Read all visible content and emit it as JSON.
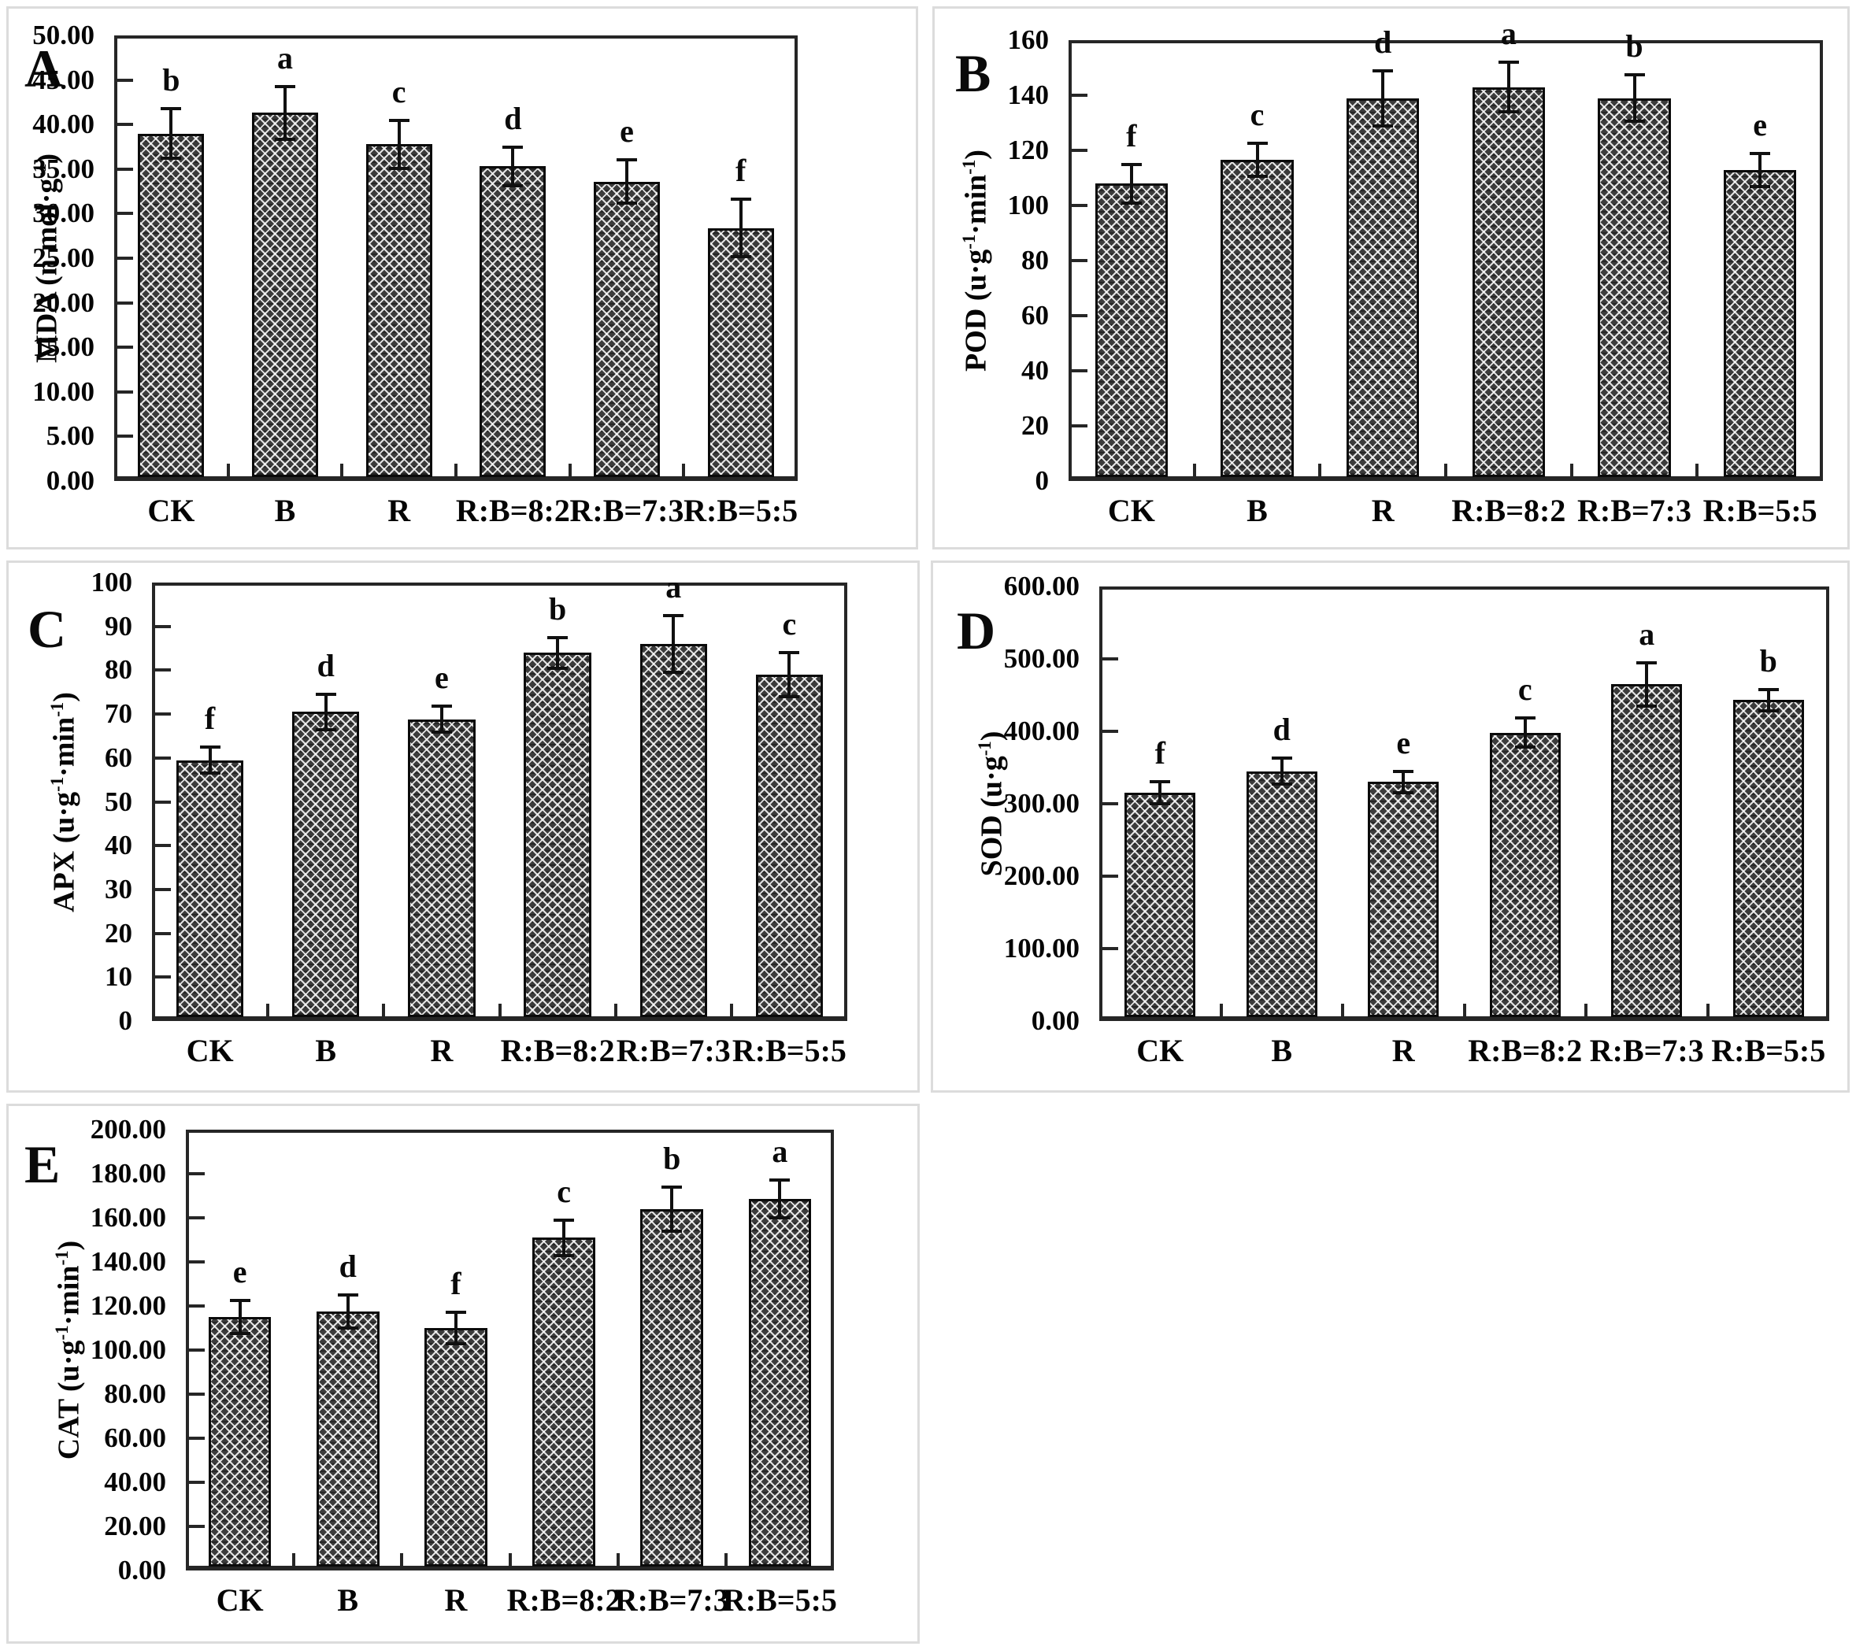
{
  "figure_title": "",
  "colors": {
    "bar_fill": "#3b3b3b",
    "bar_hatch": "#ffffff",
    "axis": "#262626",
    "text": "#050505",
    "panel_border": "#dcdcdc",
    "background": "#ffffff"
  },
  "chart_data": [
    {
      "panel_label": "A",
      "type": "bar",
      "ylabel_text": "MDA (n mol·g-1)",
      "ylabel_segments": [
        {
          "t": "MDA (n mol·g"
        },
        {
          "t": "-1",
          "sup": true
        },
        {
          "t": ")"
        }
      ],
      "ylim": [
        0,
        50
      ],
      "ytick_step": 5,
      "ytick_decimals": 2,
      "grid": false,
      "legend": "none",
      "categories": [
        "CK",
        "B",
        "R",
        "R:B=8:2",
        "R:B=7:3",
        "R:B=5:5"
      ],
      "values": [
        39.0,
        41.3,
        37.8,
        35.3,
        33.6,
        28.4
      ],
      "errors": [
        2.8,
        3.0,
        2.7,
        2.2,
        2.4,
        3.2
      ],
      "sig_letters": [
        "b",
        "a",
        "c",
        "d",
        "e",
        "f"
      ]
    },
    {
      "panel_label": "B",
      "type": "bar",
      "ylabel_text": "POD (u·g-1·min-1)",
      "ylabel_segments": [
        {
          "t": "POD (u·g"
        },
        {
          "t": "-1",
          "sup": true
        },
        {
          "t": "·min"
        },
        {
          "t": "-1",
          "sup": true
        },
        {
          "t": ")"
        }
      ],
      "ylim": [
        0,
        160
      ],
      "ytick_step": 20,
      "ytick_decimals": 0,
      "grid": false,
      "legend": "none",
      "categories": [
        "CK",
        "B",
        "R",
        "R:B=8:2",
        "R:B=7:3",
        "R:B=5:5"
      ],
      "values": [
        108,
        116.5,
        139,
        143,
        139,
        113
      ],
      "errors": [
        7,
        6,
        10,
        9,
        8.5,
        6
      ],
      "sig_letters": [
        "f",
        "c",
        "d",
        "a",
        "b",
        "e"
      ]
    },
    {
      "panel_label": "C",
      "type": "bar",
      "ylabel_text": "APX (u·g-1·min-1)",
      "ylabel_segments": [
        {
          "t": "APX (u·g"
        },
        {
          "t": "-1",
          "sup": true
        },
        {
          "t": "·min"
        },
        {
          "t": "-1",
          "sup": true
        },
        {
          "t": ")"
        }
      ],
      "ylim": [
        0,
        100
      ],
      "ytick_step": 10,
      "ytick_decimals": 0,
      "grid": false,
      "legend": "none",
      "categories": [
        "CK",
        "B",
        "R",
        "R:B=8:2",
        "R:B=7:3",
        "R:B=5:5"
      ],
      "values": [
        59.5,
        70.5,
        68.8,
        84,
        86,
        79
      ],
      "errors": [
        3,
        4,
        3,
        3.5,
        6.5,
        5
      ],
      "sig_letters": [
        "f",
        "d",
        "e",
        "b",
        "a",
        "c"
      ]
    },
    {
      "panel_label": "D",
      "type": "bar",
      "ylabel_text": "SOD (u·g-1)",
      "ylabel_segments": [
        {
          "t": "SOD (u·g"
        },
        {
          "t": "-1",
          "sup": true
        },
        {
          "t": ")"
        }
      ],
      "ylim": [
        0,
        600
      ],
      "ytick_step": 100,
      "ytick_decimals": 2,
      "grid": false,
      "legend": "none",
      "categories": [
        "CK",
        "B",
        "R",
        "R:B=8:2",
        "R:B=7:3",
        "R:B=5:5"
      ],
      "values": [
        315,
        345,
        330,
        398,
        465,
        443
      ],
      "errors": [
        15,
        18,
        15,
        20,
        30,
        15
      ],
      "sig_letters": [
        "f",
        "d",
        "e",
        "c",
        "a",
        "b"
      ]
    },
    {
      "panel_label": "E",
      "type": "bar",
      "ylabel_text": "CAT (u·g-1·min-1)",
      "ylabel_segments": [
        {
          "t": "CAT (u·g"
        },
        {
          "t": "-1",
          "sup": true
        },
        {
          "t": "·min"
        },
        {
          "t": "-1",
          "sup": true
        },
        {
          "t": ")"
        }
      ],
      "ylim": [
        0,
        200
      ],
      "ytick_step": 20,
      "ytick_decimals": 2,
      "grid": false,
      "legend": "none",
      "categories": [
        "CK",
        "B",
        "R",
        "R:B=8:2",
        "R:B=7:3",
        "R:B=5:5"
      ],
      "values": [
        115,
        117.5,
        110,
        151,
        164,
        168.5
      ],
      "errors": [
        7.5,
        7.5,
        7,
        8,
        10,
        8.5
      ],
      "sig_letters": [
        "e",
        "d",
        "f",
        "c",
        "b",
        "a"
      ]
    }
  ]
}
